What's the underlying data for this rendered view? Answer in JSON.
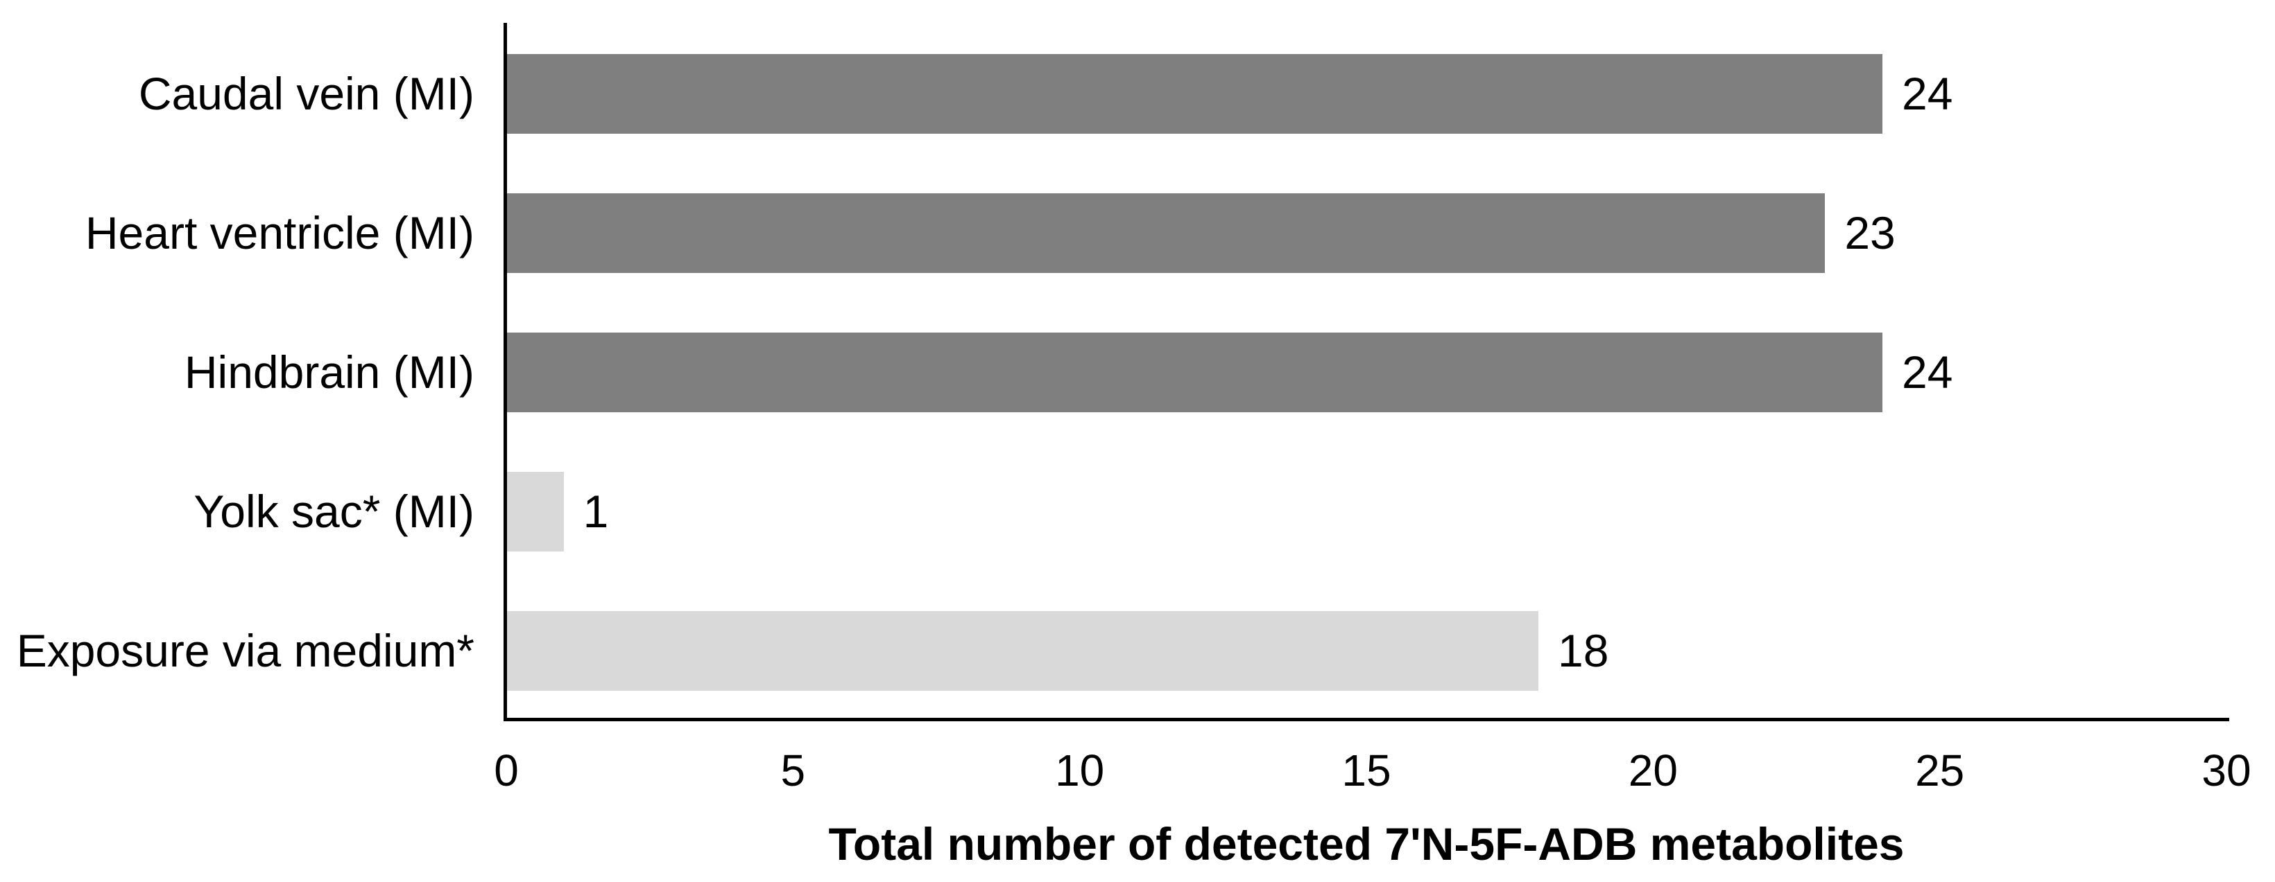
{
  "chart_data": {
    "type": "bar",
    "orientation": "horizontal",
    "title": "",
    "categories": [
      "Caudal vein (MI)",
      "Heart ventricle (MI)",
      "Hindbrain (MI)",
      "Yolk sac* (MI)",
      "Exposure via medium*"
    ],
    "values": [
      24,
      23,
      24,
      1,
      18
    ],
    "value_labels": [
      "24",
      "23",
      "24",
      "1",
      "18"
    ],
    "bar_colors": [
      "#7F7F7F",
      "#7F7F7F",
      "#7F7F7F",
      "#D9D9D9",
      "#D9D9D9"
    ],
    "xlabel": "Total number of detected 7'N-5F-ADB metabolites",
    "ylabel": "",
    "xlim": [
      0,
      30
    ],
    "xticks": [
      0,
      5,
      10,
      15,
      20,
      25,
      30
    ],
    "grid": false,
    "legend": false
  },
  "colors": {
    "dark_bar": "#7F7F7F",
    "light_bar": "#D9D9D9",
    "axis": "#000000",
    "text": "#000000",
    "background": "#FFFFFF"
  }
}
